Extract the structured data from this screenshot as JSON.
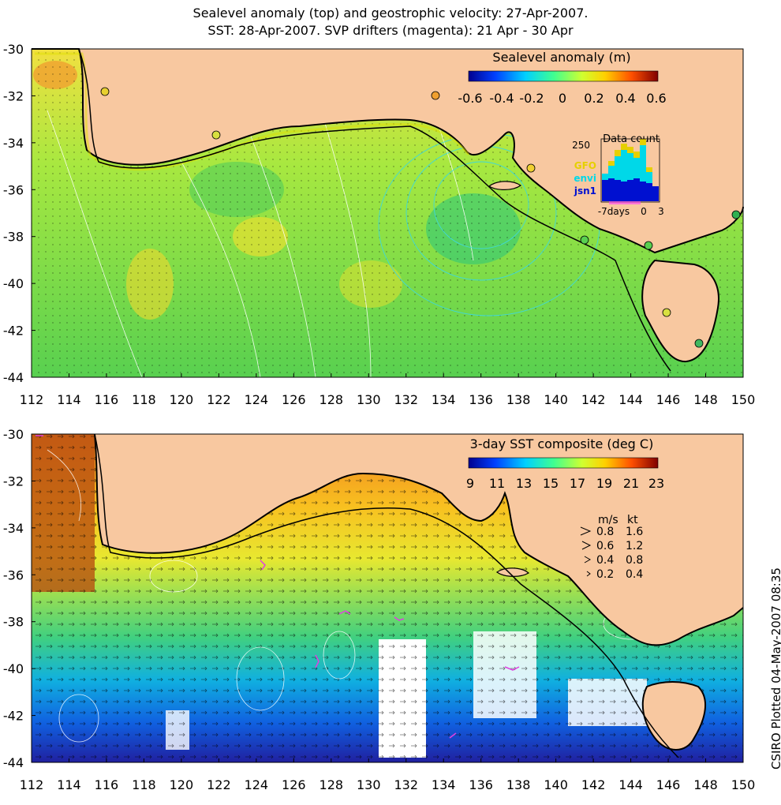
{
  "title_line1": "Sealevel anomaly (top) and geostrophic velocity: 27-Apr-2007.",
  "title_line2": "SST: 28-Apr-2007. SVP drifters (magenta): 21 Apr - 30 Apr",
  "credit": "CSIRO Plotted 04-May-2007 08:35",
  "top_panel": {
    "colorbar_title": "Sealevel anomaly (m)",
    "colorbar_ticks": [
      "-0.6",
      "-0.4",
      "-0.2",
      "0",
      "0.2",
      "0.4",
      "0.6"
    ],
    "inset": {
      "title": "Data count",
      "y_tick": "250",
      "x_ticks": [
        "-7days",
        "0",
        "3"
      ],
      "legend": [
        {
          "label": "GFO",
          "color": "#e6d000"
        },
        {
          "label": "envi",
          "color": "#00d8e8"
        },
        {
          "label": "jsn1",
          "color": "#0010d0"
        }
      ]
    }
  },
  "bottom_panel": {
    "colorbar_title": "3-day SST composite (deg C)",
    "colorbar_ticks": [
      "9",
      "11",
      "13",
      "15",
      "17",
      "19",
      "21",
      "23"
    ],
    "vector_legend": {
      "units_ms": "m/s",
      "units_kt": "kt",
      "rows": [
        {
          "ms": "0.8",
          "kt": "1.6"
        },
        {
          "ms": "0.6",
          "kt": "1.2"
        },
        {
          "ms": "0.4",
          "kt": "0.8"
        },
        {
          "ms": "0.2",
          "kt": "0.4"
        }
      ]
    }
  },
  "axes": {
    "lon_ticks": [
      "112",
      "114",
      "116",
      "118",
      "120",
      "122",
      "124",
      "126",
      "128",
      "130",
      "132",
      "134",
      "136",
      "138",
      "140",
      "142",
      "144",
      "146",
      "148",
      "150"
    ],
    "lat_ticks": [
      "-30",
      "-32",
      "-34",
      "-36",
      "-38",
      "-40",
      "-42",
      "-44"
    ]
  },
  "colors": {
    "land": "#f8c8a0",
    "coast": "#000000",
    "sla_scale": [
      "#00008f",
      "#0050ff",
      "#00d0ff",
      "#50ff90",
      "#c8ff40",
      "#ffd000",
      "#ff6000",
      "#900000"
    ],
    "sst_scale": [
      "#00008f",
      "#0050ff",
      "#00d0ff",
      "#50ff90",
      "#c8ff40",
      "#ffd000",
      "#ff6000",
      "#900000"
    ]
  }
}
